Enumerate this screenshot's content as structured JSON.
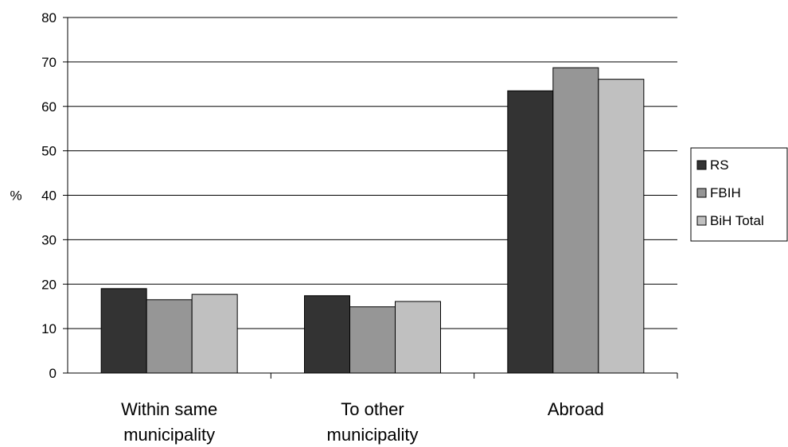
{
  "chart_data": {
    "type": "bar",
    "title": "",
    "xlabel": "",
    "ylabel": "%",
    "ylim": [
      0,
      80
    ],
    "yticks": [
      0,
      10,
      20,
      30,
      40,
      50,
      60,
      70,
      80
    ],
    "grid": true,
    "legend_position": "right",
    "categories": [
      [
        "Within same",
        "municipality"
      ],
      [
        "To other",
        "municipality"
      ],
      [
        "Abroad"
      ]
    ],
    "series": [
      {
        "name": "RS",
        "color": "#333333",
        "values": [
          19.0,
          17.4,
          63.5
        ]
      },
      {
        "name": "FBIH",
        "color": "#969696",
        "values": [
          16.5,
          14.9,
          68.7
        ]
      },
      {
        "name": "BiH Total",
        "color": "#c0c0c0",
        "values": [
          17.7,
          16.1,
          66.1
        ]
      }
    ]
  }
}
